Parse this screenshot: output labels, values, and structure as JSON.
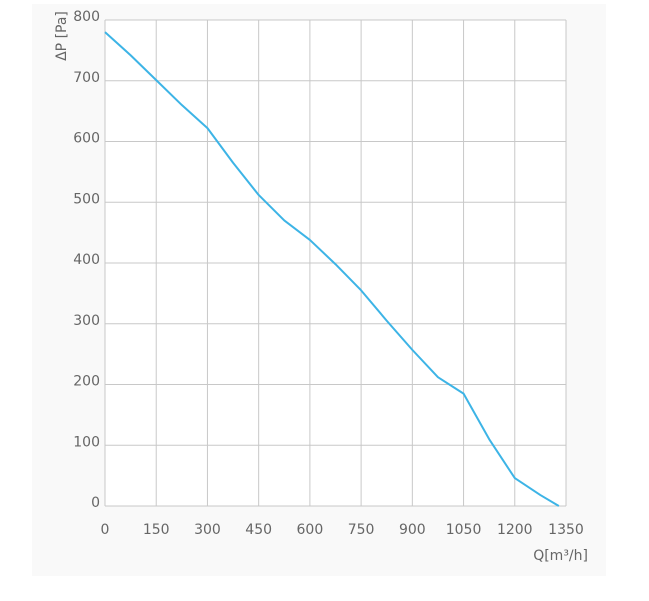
{
  "chart_data": {
    "type": "line",
    "y_label": "ΔP [Pa]",
    "x_label": "Q[m³/h]",
    "x": [
      0,
      75,
      150,
      225,
      300,
      375,
      450,
      525,
      600,
      675,
      750,
      825,
      900,
      975,
      1050,
      1125,
      1200,
      1275,
      1329
    ],
    "series": [
      {
        "color": "#3db4e6",
        "values": [
          780,
          742,
          701,
          660,
          622,
          565,
          512,
          470,
          438,
          398,
          355,
          305,
          257,
          212,
          185,
          110,
          46,
          18,
          0
        ]
      }
    ],
    "xlim": [
      0,
      1350
    ],
    "xticks": [
      0,
      150,
      300,
      450,
      600,
      750,
      900,
      1050,
      1200,
      1350
    ],
    "ylim": [
      0,
      800
    ],
    "yticks": [
      0,
      100,
      200,
      300,
      400,
      500,
      600,
      700,
      800
    ],
    "grid": true
  }
}
